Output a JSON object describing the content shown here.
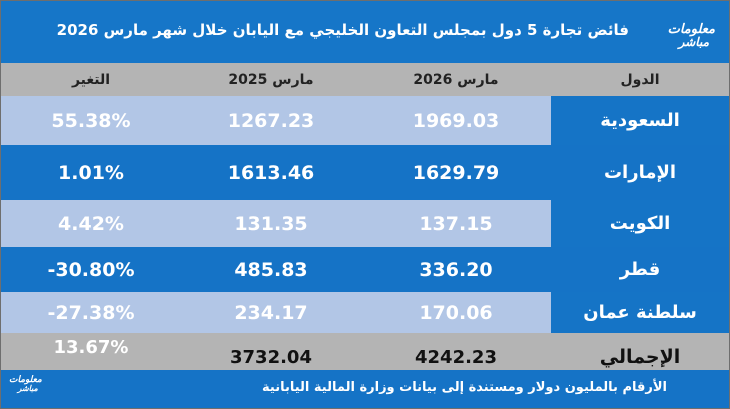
{
  "header": {
    "title": "فائض تجارة 5 دول بمجلس التعاون الخليجي مع اليابان خلال شهر مارس 2026",
    "logo_line1": "معلومات",
    "logo_line2": "مباشر"
  },
  "table": {
    "columns": [
      "الدول",
      "مارس 2026",
      "مارس 2025",
      "التغير"
    ],
    "rows": [
      {
        "country": "السعودية",
        "mar_2026": "1969.03",
        "mar_2025": "1267.23",
        "change": "55.38%"
      },
      {
        "country": "الإمارات",
        "mar_2026": "1629.79",
        "mar_2025": "1613.46",
        "change": "1.01%"
      },
      {
        "country": "الكويت",
        "mar_2026": "137.15",
        "mar_2025": "131.35",
        "change": "4.42%"
      },
      {
        "country": "قطر",
        "mar_2026": "336.20",
        "mar_2025": "485.83",
        "change": "-30.80%"
      },
      {
        "country": "سلطنة عمان",
        "mar_2026": "170.06",
        "mar_2025": "234.17",
        "change": "-27.38%"
      }
    ],
    "total": {
      "country": "الإجمالي",
      "mar_2026": "4242.23",
      "mar_2025": "3732.04",
      "change": "13.67%"
    }
  },
  "footer": {
    "source": "الأرقام بالمليون دولار ومستندة إلى بيانات وزارة المالية اليابانية",
    "logo_line1": "معلومات",
    "logo_line2": "مباشر"
  },
  "colors": {
    "brand_blue": "#1573c6",
    "light_row": "#b2c6e6",
    "header_gray": "#b4b4b4"
  }
}
